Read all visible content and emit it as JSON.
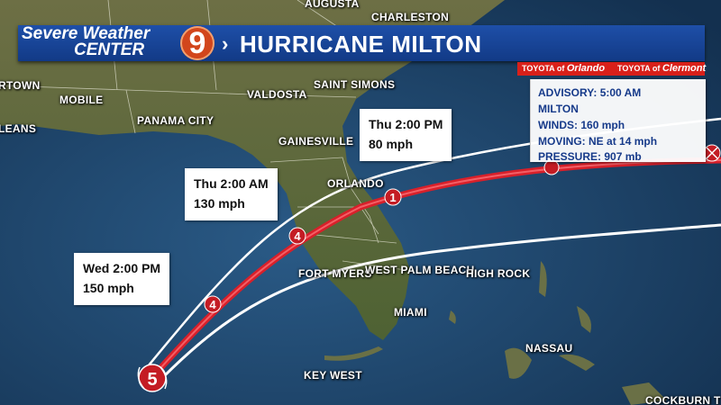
{
  "header": {
    "brand_line1": "Severe Weather",
    "brand_line2": "CENTER",
    "logo_number": "9",
    "title": "HURRICANE MILTON",
    "chevron": "›"
  },
  "sponsors": [
    {
      "brand": "TOYOTA",
      "of": "of",
      "city": "Orlando"
    },
    {
      "brand": "TOYOTA",
      "of": "of",
      "city": "Clermont"
    }
  ],
  "advisory": {
    "advisory_label": "ADVISORY:",
    "advisory_value": "5:00 AM",
    "storm_name": "MILTON",
    "winds_label": "WINDS:",
    "winds_value": "160 mph",
    "moving_label": "MOVING:",
    "moving_value": "NE at 14 mph",
    "pressure_label": "PRESSURE:",
    "pressure_value": "907 mb"
  },
  "callouts": [
    {
      "time": "Thu 2:00 PM",
      "wind": "80 mph"
    },
    {
      "time": "Thu 2:00 AM",
      "wind": "130 mph"
    },
    {
      "time": "Wed 2:00 PM",
      "wind": "150 mph"
    }
  ],
  "track_markers": [
    "5",
    "4",
    "4",
    "1"
  ],
  "cities": [
    {
      "name": "AUGUSTA"
    },
    {
      "name": "CHARLESTON"
    },
    {
      "name": "RTOWN"
    },
    {
      "name": "MOBILE"
    },
    {
      "name": "VALDOSTA"
    },
    {
      "name": "SAINT SIMONS"
    },
    {
      "name": "PANAMA CITY"
    },
    {
      "name": "LEANS"
    },
    {
      "name": "GAINESVILLE"
    },
    {
      "name": "ORLANDO"
    },
    {
      "name": "FORT MYERS"
    },
    {
      "name": "WEST PALM BEACH"
    },
    {
      "name": "HIGH ROCK"
    },
    {
      "name": "MIAMI"
    },
    {
      "name": "NASSAU"
    },
    {
      "name": "KEY WEST"
    },
    {
      "name": "COCKBURN T"
    }
  ],
  "colors": {
    "banner": "#1e4fa8",
    "track": "#d8202a",
    "sponsor": "#d8201a",
    "logo": "#d2461c",
    "water": "#1b3a5c",
    "land": "#5f6a3c"
  }
}
